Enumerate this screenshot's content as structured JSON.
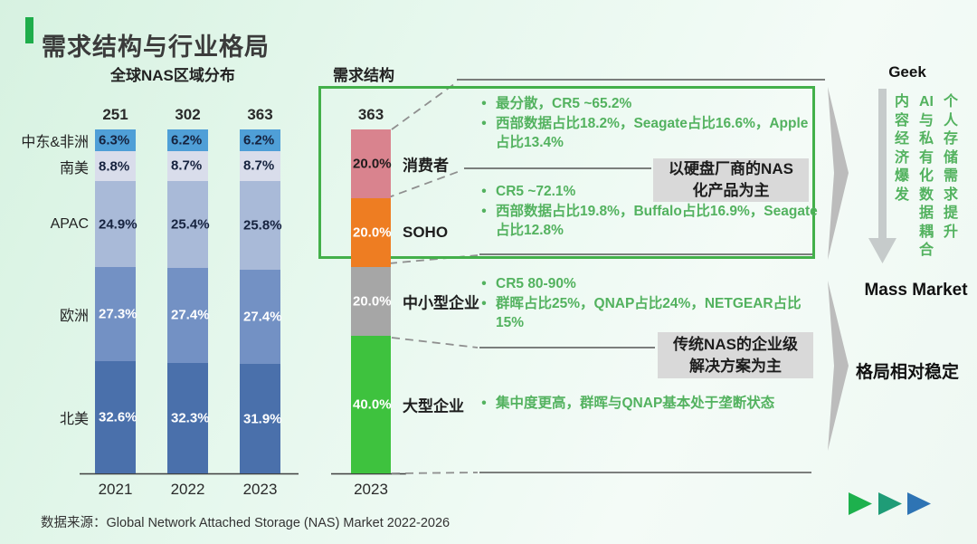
{
  "title": "需求结构与行业格局",
  "left_chart": {
    "title": "全球NAS区域分布"
  },
  "mid_chart": {
    "title": "需求结构"
  },
  "chart_data": [
    {
      "type": "bar",
      "stacked": true,
      "title": "全球NAS区域分布",
      "categories": [
        "2021",
        "2022",
        "2023"
      ],
      "totals": [
        251,
        302,
        363
      ],
      "unit": "%",
      "ylim": [
        0,
        100
      ],
      "series_order": "top_to_bottom",
      "series": [
        {
          "name": "中东&非洲",
          "values": [
            6.3,
            6.2,
            6.2
          ],
          "color": "#4f9fd7",
          "label_color": "#16233f"
        },
        {
          "name": "南美",
          "values": [
            8.8,
            8.7,
            8.7
          ],
          "color": "#d9ddeb",
          "label_color": "#16233f"
        },
        {
          "name": "APAC",
          "values": [
            24.9,
            25.4,
            25.8
          ],
          "color": "#a9bad8",
          "label_color": "#16233f"
        },
        {
          "name": "欧洲",
          "values": [
            27.3,
            27.4,
            27.4
          ],
          "color": "#7391c4",
          "label_color": "#ffffff"
        },
        {
          "name": "北美",
          "values": [
            32.6,
            32.3,
            31.9
          ],
          "color": "#4a70ab",
          "label_color": "#ffffff"
        }
      ]
    },
    {
      "type": "bar",
      "stacked": true,
      "title": "需求结构",
      "categories": [
        "2023"
      ],
      "totals": [
        363
      ],
      "unit": "%",
      "ylim": [
        0,
        100
      ],
      "series_order": "top_to_bottom",
      "series": [
        {
          "name": "消费者",
          "values": [
            20.0
          ],
          "color": "#d9838e",
          "label_color": "#201c1c"
        },
        {
          "name": "SOHO",
          "values": [
            20.0
          ],
          "color": "#ee7d22",
          "label_color": "#ffffff"
        },
        {
          "name": "中小型企业",
          "values": [
            20.0
          ],
          "color": "#a6a6a6",
          "label_color": "#ffffff"
        },
        {
          "name": "大型企业",
          "values": [
            40.0
          ],
          "color": "#3ec23e",
          "label_color": "#ffffff"
        }
      ]
    }
  ],
  "annotations": [
    {
      "bullets": [
        "最分散，CR5 ~65.2%",
        "西部数据占比18.2%，Seagate占比16.6%，Apple占比13.4%"
      ]
    },
    {
      "bullets": [
        "CR5 ~72.1%",
        "西部数据占比19.8%，Buffalo占比16.9%，Seagate占比12.8%"
      ]
    },
    {
      "bullets": [
        "CR5 80-90%",
        "群晖占比25%，QNAP占比24%，NETGEAR占比15%"
      ]
    },
    {
      "bullets": [
        "集中度更高，群晖与QNAP基本处于垄断状态"
      ]
    }
  ],
  "callouts": [
    "以硬盘厂商的NAS\n化产品为主",
    "传统NAS的企业级\n解决方案为主"
  ],
  "right_panel": {
    "geek": "Geek",
    "vertical_texts": [
      "内容经济爆发",
      "AI与私有化数据耦合",
      "个人存储需求提升"
    ],
    "mass_market": "Mass Market",
    "stable": "格局相对稳定"
  },
  "source": "数据来源：Global Network Attached Storage (NAS) Market 2022-2026",
  "colors": {
    "accent_green": "#1fad4b",
    "box_border_green": "#43b04a",
    "annotation_green": "#53b25f",
    "callout_bg": "#d9d9d9",
    "chevron_gray": "#bcbcbc",
    "arrow_gray": "#c6cbcb",
    "triangle_colors": [
      "#1db14d",
      "#1f9c77",
      "#2e74b4"
    ]
  }
}
